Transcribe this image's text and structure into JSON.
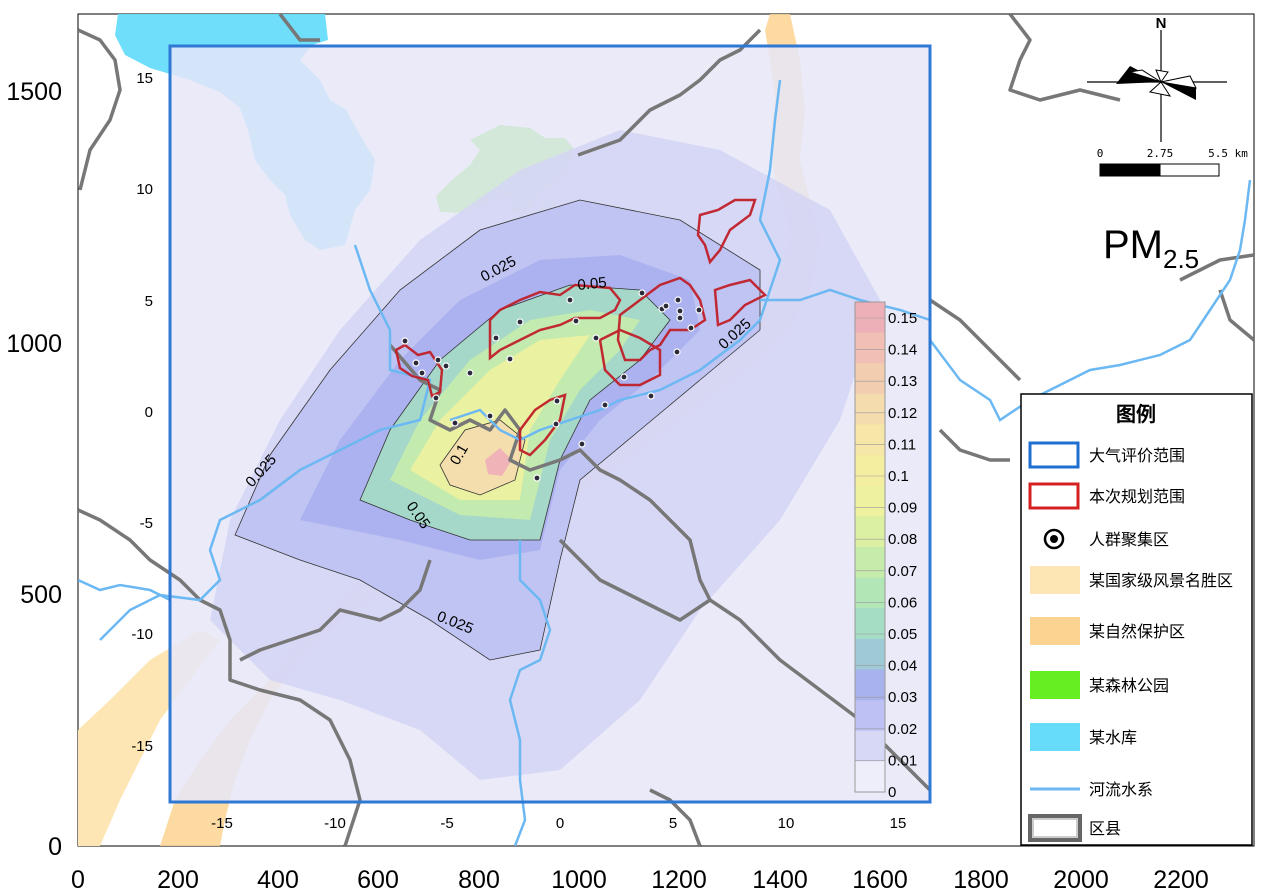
{
  "title": {
    "main": "PM",
    "sub": "2.5"
  },
  "outer_axis": {
    "x_ticks": [
      "0",
      "200",
      "400",
      "600",
      "800",
      "1000",
      "1200",
      "1400",
      "1600",
      "1800",
      "2000",
      "2200"
    ],
    "y_ticks": [
      "0",
      "500",
      "1000",
      "1500"
    ]
  },
  "inner_axis": {
    "x_ticks": [
      "-15",
      "-10",
      "-5",
      "0",
      "5",
      "10",
      "15"
    ],
    "y_ticks": [
      "15",
      "10",
      "5",
      "0",
      "-5",
      "-10",
      "-15"
    ]
  },
  "contour_labels": [
    "0.025",
    "0.025",
    "0.05",
    "0.1",
    "0.05",
    "0.025",
    "0.025"
  ],
  "colorbar": {
    "values": [
      "0.15",
      "0.14",
      "0.13",
      "0.12",
      "0.11",
      "0.1",
      "0.09",
      "0.08",
      "0.07",
      "0.06",
      "0.05",
      "0.04",
      "0.03",
      "0.02",
      "0.01",
      "0"
    ],
    "colors": [
      "#eeb0b8",
      "#f1bfb4",
      "#f3cdb0",
      "#f5dcae",
      "#f6e6a8",
      "#f4eea0",
      "#eef2a0",
      "#dcf0a4",
      "#c6ecac",
      "#b3e6b6",
      "#a4dcc4",
      "#9ecad6",
      "#a8b2ec",
      "#bdc1f4",
      "#d6d8f6",
      "#eeeefb"
    ]
  },
  "scale_bar": {
    "labels": [
      "0",
      "2.75",
      "5.5 km"
    ]
  },
  "north": {
    "label": "N"
  },
  "legend": {
    "title": "图例",
    "items": [
      {
        "label": "大气评价范围",
        "icon": "blue-rect-outline",
        "color": "#1f6fd0"
      },
      {
        "label": "本次规划范围",
        "icon": "red-rect-outline",
        "color": "#d42020"
      },
      {
        "label": "人群聚集区",
        "icon": "bullseye-dot",
        "color": "#000000"
      },
      {
        "label": "某国家级风景名胜区",
        "icon": "light-orange-swatch",
        "color": "#fde6b4"
      },
      {
        "label": "某自然保护区",
        "icon": "orange-swatch",
        "color": "#fcd391"
      },
      {
        "label": "某森林公园",
        "icon": "green-swatch",
        "color": "#66ee22"
      },
      {
        "label": "某水库",
        "icon": "cyan-swatch",
        "color": "#66dcfa"
      },
      {
        "label": "河流水系",
        "icon": "river-line",
        "color": "#6bb8f2"
      },
      {
        "label": "区县",
        "icon": "grey-rect-outline",
        "color": "#808080"
      }
    ]
  }
}
